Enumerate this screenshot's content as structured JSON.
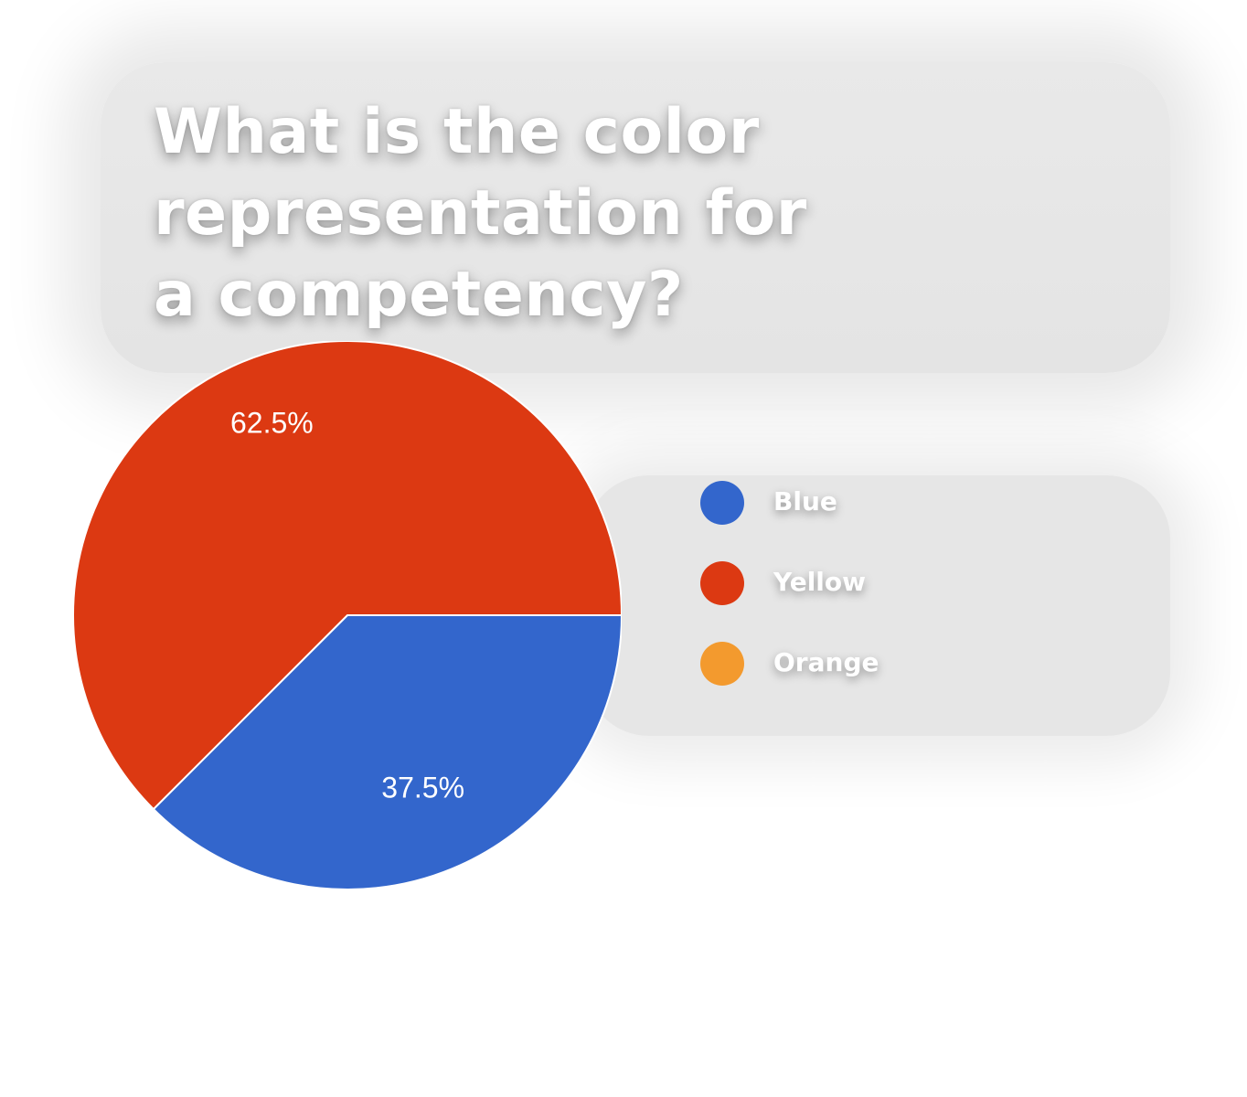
{
  "chart_data": {
    "type": "pie",
    "title": "What is the color representation for a competency?",
    "slices": [
      {
        "label": "Blue",
        "value": 37.5,
        "color": "#3366cc",
        "value_label": "37.5%"
      },
      {
        "label": "Yellow",
        "value": 62.5,
        "color": "#dc3912",
        "value_label": "62.5%"
      },
      {
        "label": "Orange",
        "value": 0,
        "color": "#ff9900",
        "value_label": ""
      }
    ],
    "legend_position": "right"
  },
  "legend": [
    {
      "label": "Blue",
      "color": "#3366cc"
    },
    {
      "label": "Yellow",
      "color": "#dc3912"
    },
    {
      "label": "Orange",
      "color": "#f39a2e"
    }
  ]
}
